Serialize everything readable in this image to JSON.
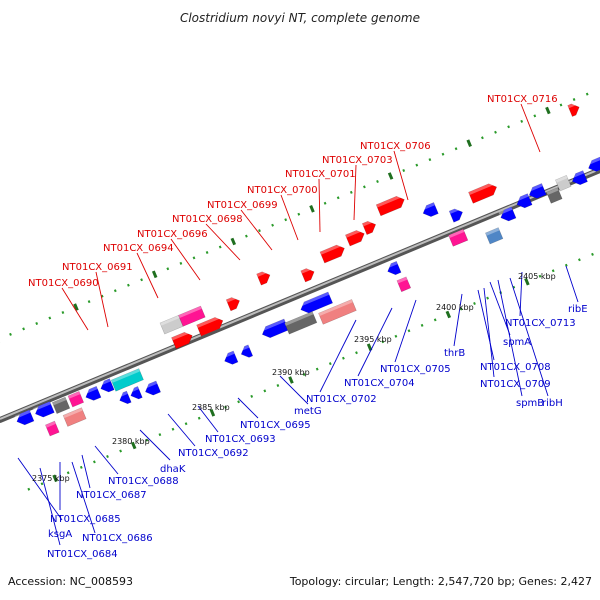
{
  "title": "Clostridium novyi NT, complete genome",
  "footer": {
    "accession": "Accession: NC_008593",
    "topology": "Topology: circular; Length: 2,547,720 bp; Genes: 2,427"
  },
  "colors": {
    "plus_label": "#dd0000",
    "minus_label": "#0000cc",
    "backbone": "#7a7a7a",
    "tick_dot": "#2a9a2a",
    "tick_major": "#1f6f1f",
    "gene_red": "#ff0000",
    "gene_blue": "#0000ff",
    "gene_magenta": "#ff1493",
    "gene_gray": "#cccccc",
    "gene_darkgray": "#666666",
    "gene_cyan": "#00cccc",
    "gene_salmon": "#f08080",
    "gene_steel": "#4f86c6"
  },
  "scale_labels": [
    "2375 kbp",
    "2380 kbp",
    "2385 kbp",
    "2390 kbp",
    "2395 kbp",
    "2400 kbp",
    "2405 kbp"
  ],
  "plus_genes": [
    "NT01CX_0690",
    "NT01CX_0691",
    "NT01CX_0694",
    "NT01CX_0696",
    "NT01CX_0698",
    "NT01CX_0699",
    "NT01CX_0700",
    "NT01CX_0701",
    "NT01CX_0703",
    "NT01CX_0706",
    "NT01CX_0716"
  ],
  "minus_genes": [
    "ksgA",
    "NT01CX_0684",
    "NT01CX_0685",
    "NT01CX_0686",
    "NT01CX_0687",
    "NT01CX_0688",
    "dhaK",
    "NT01CX_0692",
    "NT01CX_0693",
    "NT01CX_0695",
    "metG",
    "NT01CX_0702",
    "NT01CX_0704",
    "NT01CX_0705",
    "thrB",
    "NT01CX_0708",
    "NT01CX_0709",
    "spmA",
    "spmB",
    "ribH",
    "NT01CX_0713",
    "ribE"
  ]
}
